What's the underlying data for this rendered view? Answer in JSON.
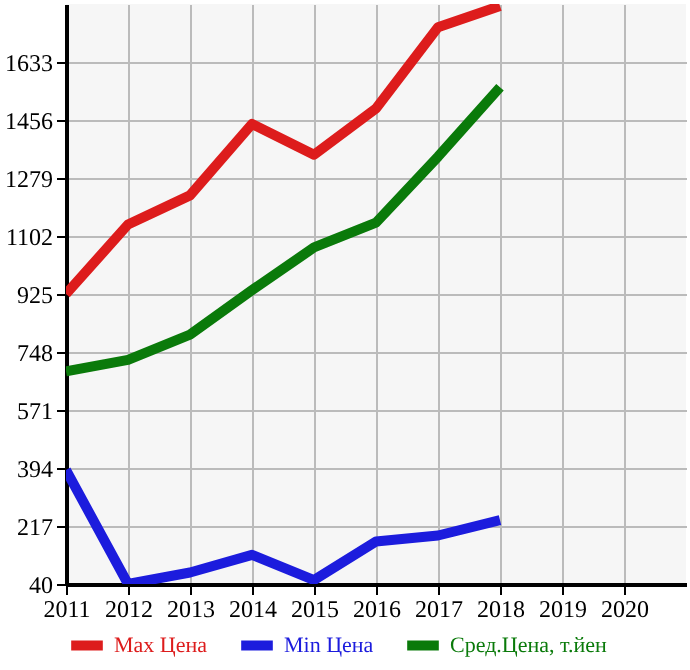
{
  "chart_data": {
    "type": "line",
    "x": [
      2011,
      2012,
      2013,
      2014,
      2015,
      2016,
      2017,
      2018
    ],
    "series": [
      {
        "name": "Max Цена",
        "color": "#dd1c1c",
        "values": [
          925,
          1137,
          1226,
          1444,
          1350,
          1491,
          1739,
          1804
        ]
      },
      {
        "name": "Min Цена",
        "color": "#1c1cdd",
        "values": [
          388,
          40,
          75,
          129,
          52,
          170,
          188,
          235
        ]
      },
      {
        "name": "Сред.Цена, т.йен",
        "color": "#0a7a0a",
        "values": [
          689,
          724,
          801,
          937,
          1067,
          1143,
          1344,
          1556
        ]
      }
    ],
    "xlim": [
      2011,
      2021
    ],
    "xticks": [
      2011,
      2012,
      2013,
      2014,
      2015,
      2016,
      2017,
      2018,
      2019,
      2020
    ],
    "ylim": [
      40,
      1810
    ],
    "yticks": [
      40,
      217,
      394,
      571,
      748,
      925,
      1102,
      1279,
      1456,
      1633
    ],
    "grid": true,
    "legend": "bottom",
    "marker": "none",
    "line_style": "solid"
  }
}
